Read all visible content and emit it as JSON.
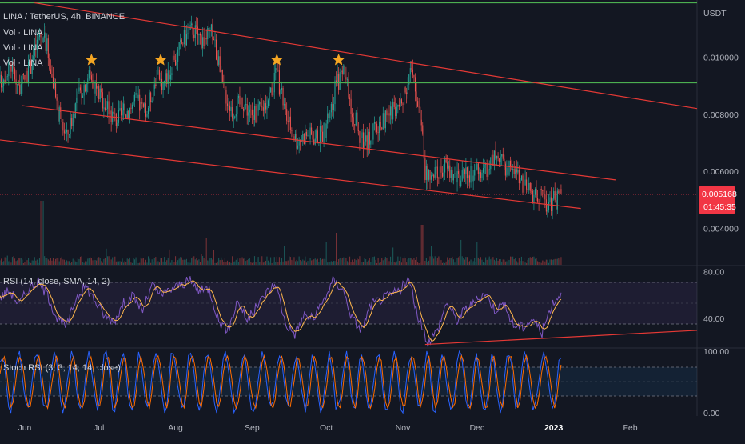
{
  "symbol_title": "LINA / TetherUS, 4h, BINANCE",
  "volume_legends": [
    "Vol · LINA",
    "Vol · LINA",
    "Vol · LINA"
  ],
  "quote_currency": "USDT",
  "last_price": "0.005168",
  "countdown": "01:45:35",
  "rsi_legend": "RSI (14, close, SMA, 14, 2)",
  "stoch_legend": "Stoch RSI (3, 3, 14, 14, close)",
  "colors": {
    "background": "#131722",
    "up": "#26a69a",
    "down": "#ef5350",
    "trendline": "#e53935",
    "level": "#4caf50",
    "rsi": "#7e57c2",
    "rsi_ma": "#ffb74d",
    "stoch_k": "#2962ff",
    "stoch_d": "#ff6d00",
    "star": "#f5a623",
    "badge": "#f23645"
  },
  "chart_data": [
    {
      "type": "candlestick",
      "title": "LINA / TetherUS, 4h, BINANCE",
      "y_unit": "USDT",
      "y_ticks": [
        "0.010000",
        "0.008000",
        "0.006000",
        "0.004000"
      ],
      "ylim": [
        0.0027,
        0.012
      ],
      "x_ticks": [
        "Jun",
        "Jul",
        "Aug",
        "Sep",
        "Oct",
        "Nov",
        "Dec",
        "2023",
        "Feb"
      ],
      "xlim": [
        "2022-05-22",
        "2023-02-28"
      ],
      "series": [
        {
          "name": "close",
          "points": [
            [
              "2022-05-22",
              0.0091
            ],
            [
              "2022-05-26",
              0.0098
            ],
            [
              "2022-05-30",
              0.0089
            ],
            [
              "2022-06-03",
              0.0096
            ],
            [
              "2022-06-07",
              0.0108
            ],
            [
              "2022-06-10",
              0.0104
            ],
            [
              "2022-06-14",
              0.0082
            ],
            [
              "2022-06-18",
              0.0072
            ],
            [
              "2022-06-22",
              0.0085
            ],
            [
              "2022-06-27",
              0.0094
            ],
            [
              "2022-06-30",
              0.0089
            ],
            [
              "2022-07-04",
              0.0083
            ],
            [
              "2022-07-08",
              0.0078
            ],
            [
              "2022-07-12",
              0.0081
            ],
            [
              "2022-07-16",
              0.0085
            ],
            [
              "2022-07-20",
              0.008
            ],
            [
              "2022-07-24",
              0.0093
            ],
            [
              "2022-07-27",
              0.0091
            ],
            [
              "2022-07-31",
              0.0097
            ],
            [
              "2022-08-04",
              0.0106
            ],
            [
              "2022-08-08",
              0.011
            ],
            [
              "2022-08-12",
              0.0106
            ],
            [
              "2022-08-16",
              0.0109
            ],
            [
              "2022-08-20",
              0.009
            ],
            [
              "2022-08-24",
              0.0081
            ],
            [
              "2022-08-28",
              0.0085
            ],
            [
              "2022-09-01",
              0.0079
            ],
            [
              "2022-09-05",
              0.0082
            ],
            [
              "2022-09-08",
              0.0087
            ],
            [
              "2022-09-11",
              0.0094
            ],
            [
              "2022-09-15",
              0.0079
            ],
            [
              "2022-09-19",
              0.0071
            ],
            [
              "2022-09-23",
              0.0073
            ],
            [
              "2022-09-27",
              0.0072
            ],
            [
              "2022-10-01",
              0.0075
            ],
            [
              "2022-10-05",
              0.0091
            ],
            [
              "2022-10-08",
              0.0094
            ],
            [
              "2022-10-12",
              0.008
            ],
            [
              "2022-10-16",
              0.0069
            ],
            [
              "2022-10-20",
              0.0074
            ],
            [
              "2022-10-24",
              0.0078
            ],
            [
              "2022-10-28",
              0.0081
            ],
            [
              "2022-11-01",
              0.0084
            ],
            [
              "2022-11-04",
              0.0096
            ],
            [
              "2022-11-08",
              0.0081
            ],
            [
              "2022-11-10",
              0.006
            ],
            [
              "2022-11-13",
              0.0057
            ],
            [
              "2022-11-18",
              0.0062
            ],
            [
              "2022-11-23",
              0.0057
            ],
            [
              "2022-11-28",
              0.0059
            ],
            [
              "2022-12-03",
              0.006
            ],
            [
              "2022-12-08",
              0.0064
            ],
            [
              "2022-12-12",
              0.0062
            ],
            [
              "2022-12-16",
              0.0061
            ],
            [
              "2022-12-18",
              0.0056
            ],
            [
              "2022-12-22",
              0.0053
            ],
            [
              "2022-12-26",
              0.0052
            ],
            [
              "2022-12-29",
              0.0049
            ],
            [
              "2023-01-02",
              0.005
            ],
            [
              "2023-01-04",
              0.0052
            ]
          ]
        },
        {
          "name": "volume",
          "points": "bars along bottom, spikes near Jun 8 and Nov 9"
        }
      ],
      "last_price": 0.005168,
      "horizontal_levels": [
        0.0119,
        0.0091
      ],
      "trendlines": [
        {
          "from": [
            "2022-06-05",
            0.0119
          ],
          "to": [
            "2023-02-28",
            0.0082
          ]
        },
        {
          "from": [
            "2022-05-31",
            0.0083
          ],
          "to": [
            "2023-01-26",
            0.0057
          ]
        },
        {
          "from": [
            "2022-05-22",
            0.0071
          ],
          "to": [
            "2023-01-12",
            0.0047
          ]
        }
      ],
      "star_markers": [
        "2022-06-28",
        "2022-07-26",
        "2022-09-11",
        "2022-10-06"
      ]
    },
    {
      "type": "line",
      "title": "RSI (14, close, SMA, 14, 2)",
      "y_ticks": [
        "80.00",
        "40.00"
      ],
      "ylim": [
        15,
        85
      ],
      "bands": [
        70,
        50,
        30
      ],
      "series": [
        {
          "name": "RSI",
          "values": [
            58,
            64,
            52,
            66,
            71,
            60,
            40,
            33,
            58,
            68,
            55,
            42,
            38,
            53,
            59,
            47,
            68,
            60,
            65,
            69,
            72,
            63,
            66,
            38,
            30,
            56,
            38,
            50,
            62,
            70,
            36,
            27,
            43,
            40,
            55,
            72,
            66,
            41,
            30,
            52,
            56,
            60,
            64,
            73,
            40,
            20,
            30,
            55,
            38,
            49,
            54,
            62,
            48,
            52,
            34,
            33,
            40,
            28,
            52,
            62
          ]
        }
      ],
      "trendline": {
        "from": [
          "2022-11-10",
          18
        ],
        "to": [
          "2023-02-28",
          30
        ]
      }
    },
    {
      "type": "line",
      "title": "Stoch RSI (3, 3, 14, 14, close)",
      "y_ticks": [
        "100.00",
        "0.00"
      ],
      "ylim": [
        -5,
        105
      ],
      "bands": [
        80,
        50,
        20
      ],
      "series": [
        {
          "name": "K",
          "values": "oscillating 0-100"
        },
        {
          "name": "D",
          "values": "oscillating 0-100"
        }
      ]
    }
  ]
}
